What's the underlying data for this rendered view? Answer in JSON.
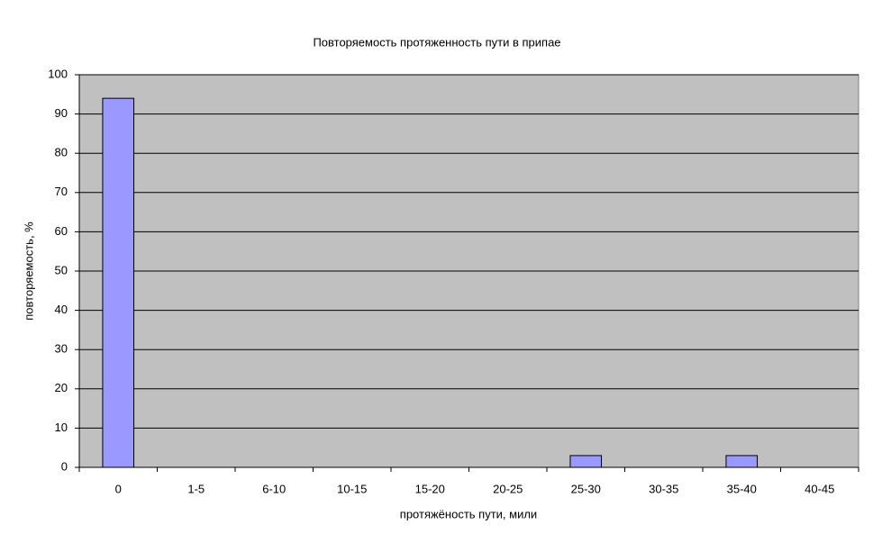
{
  "chart_data": {
    "type": "bar",
    "title": "Повторяемость протяженность пути в припае",
    "x_label": "протяжёность пути, мили",
    "y_label": "повторяемость, %",
    "categories": [
      "0",
      "1-5",
      "6-10",
      "10-15",
      "15-20",
      "20-25",
      "25-30",
      "30-35",
      "35-40",
      "40-45"
    ],
    "values": [
      94,
      0,
      0,
      0,
      0,
      0,
      3,
      0,
      3,
      0
    ],
    "color": "#9999ff",
    "ylim": [
      0,
      100
    ],
    "yticks": [
      0,
      10,
      20,
      30,
      40,
      50,
      60,
      70,
      80,
      90,
      100
    ],
    "grid": true
  }
}
